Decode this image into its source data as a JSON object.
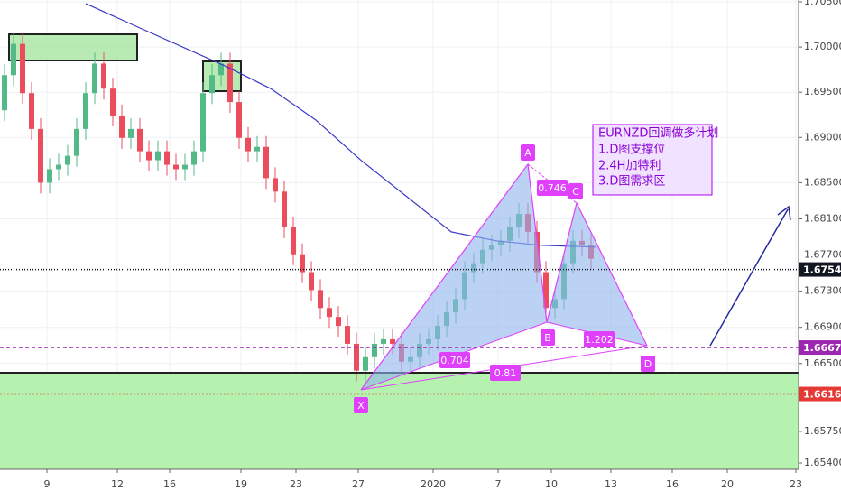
{
  "chart_data": {
    "type": "candlestick",
    "x": [
      0,
      1,
      2,
      3,
      4,
      5,
      6,
      7,
      8,
      9,
      10,
      11,
      12,
      13,
      14,
      15,
      16,
      17,
      18,
      19,
      20,
      21,
      22,
      23,
      24,
      25,
      26,
      27,
      28,
      29,
      30,
      31,
      32,
      33,
      34,
      35,
      36,
      37,
      38,
      39,
      40,
      41,
      42,
      43,
      44,
      45,
      46,
      47,
      48,
      49,
      50,
      51,
      52,
      53,
      54,
      55,
      56,
      57,
      58,
      59,
      60,
      61,
      62,
      63,
      64,
      65
    ],
    "open": [
      1.693,
      1.69689,
      1.70035,
      1.6949,
      1.69094,
      1.685,
      1.68649,
      1.68698,
      1.68797,
      1.69094,
      1.6949,
      1.69817,
      1.6954,
      1.69243,
      1.68995,
      1.69094,
      1.68847,
      1.68748,
      1.68847,
      1.68698,
      1.68649,
      1.68698,
      1.68847,
      1.6949,
      1.69689,
      1.69817,
      1.69391,
      1.68995,
      1.68847,
      1.68896,
      1.6855,
      1.68401,
      1.68005,
      1.67708,
      1.6751,
      1.67312,
      1.67114,
      1.67015,
      1.66916,
      1.66718,
      1.66421,
      1.6657,
      1.66718,
      1.66768,
      1.66718,
      1.6652,
      1.6657,
      1.66718,
      1.66768,
      1.66916,
      1.67065,
      1.67213,
      1.6751,
      1.67609,
      1.67758,
      1.67807,
      1.67857,
      1.68005,
      1.68154,
      1.67956,
      1.6751,
      1.67114,
      1.67213,
      1.67609,
      1.67857,
      1.67807
    ],
    "high": [
      1.69809,
      1.70155,
      1.70155,
      1.6961,
      1.69214,
      1.68769,
      1.68818,
      1.68917,
      1.69214,
      1.6961,
      1.69937,
      1.69937,
      1.6966,
      1.69363,
      1.69214,
      1.69214,
      1.68967,
      1.68967,
      1.68967,
      1.68818,
      1.68818,
      1.68967,
      1.6961,
      1.69809,
      1.69937,
      1.69937,
      1.69511,
      1.69115,
      1.69016,
      1.69016,
      1.6867,
      1.68521,
      1.68125,
      1.67828,
      1.6763,
      1.67432,
      1.67234,
      1.67135,
      1.67036,
      1.66838,
      1.6669,
      1.66838,
      1.66888,
      1.66888,
      1.66838,
      1.6669,
      1.66838,
      1.66888,
      1.67036,
      1.67185,
      1.67333,
      1.6763,
      1.67729,
      1.67878,
      1.67927,
      1.67977,
      1.68125,
      1.68274,
      1.68274,
      1.68076,
      1.6763,
      1.67333,
      1.67729,
      1.67977,
      1.67977,
      1.67927
    ],
    "low": [
      1.6918,
      1.69569,
      1.6937,
      1.68974,
      1.6838,
      1.6838,
      1.68529,
      1.68578,
      1.68677,
      1.68974,
      1.6937,
      1.6942,
      1.69123,
      1.68875,
      1.68875,
      1.68727,
      1.68628,
      1.68628,
      1.68578,
      1.68529,
      1.68529,
      1.68578,
      1.68727,
      1.6937,
      1.69569,
      1.69271,
      1.68875,
      1.68727,
      1.68727,
      1.6843,
      1.68281,
      1.67885,
      1.67588,
      1.6739,
      1.67192,
      1.66994,
      1.66895,
      1.66796,
      1.66598,
      1.66301,
      1.66301,
      1.6645,
      1.66598,
      1.66598,
      1.664,
      1.664,
      1.6645,
      1.66598,
      1.66648,
      1.66796,
      1.66945,
      1.67093,
      1.6739,
      1.67489,
      1.67638,
      1.67687,
      1.67737,
      1.67885,
      1.67836,
      1.6739,
      1.66994,
      1.66994,
      1.67093,
      1.67489,
      1.67687,
      1.67539
    ],
    "close": [
      1.69689,
      1.70035,
      1.6949,
      1.69094,
      1.685,
      1.68649,
      1.68698,
      1.68797,
      1.69094,
      1.6949,
      1.69817,
      1.6954,
      1.69243,
      1.68995,
      1.69094,
      1.68847,
      1.68748,
      1.68847,
      1.68698,
      1.68649,
      1.68698,
      1.68847,
      1.6949,
      1.69689,
      1.69817,
      1.69391,
      1.68995,
      1.68847,
      1.68896,
      1.6855,
      1.68401,
      1.68005,
      1.67708,
      1.6751,
      1.67312,
      1.67114,
      1.67015,
      1.66916,
      1.66718,
      1.66421,
      1.6657,
      1.66718,
      1.66768,
      1.66718,
      1.6652,
      1.6657,
      1.66718,
      1.66768,
      1.66916,
      1.67065,
      1.67213,
      1.6751,
      1.67609,
      1.67758,
      1.67807,
      1.67857,
      1.68005,
      1.68154,
      1.67956,
      1.6751,
      1.67114,
      1.67213,
      1.67609,
      1.67857,
      1.67807,
      1.67659
    ],
    "up_color": "#53b987",
    "down_color": "#eb4d5c",
    "ylim": [
      1.6533,
      1.7052
    ],
    "yticks": [
      {
        "value": 1.705,
        "label": "1.70500"
      },
      {
        "value": 1.7,
        "label": "1.70000"
      },
      {
        "value": 1.695,
        "label": "1.69500"
      },
      {
        "value": 1.69,
        "label": "1.69000"
      },
      {
        "value": 1.685,
        "label": "1.68500"
      },
      {
        "value": 1.681,
        "label": "1.68100"
      },
      {
        "value": 1.677,
        "label": "1.67700"
      },
      {
        "value": 1.673,
        "label": "1.67300"
      },
      {
        "value": 1.669,
        "label": "1.66900"
      },
      {
        "value": 1.665,
        "label": "1.66500"
      },
      {
        "value": 1.6575,
        "label": "1.65750"
      },
      {
        "value": 1.654,
        "label": "1.65400"
      }
    ],
    "xlim": [
      -0.5,
      88
    ],
    "xticks": [
      {
        "value": 4.7,
        "label": "9"
      },
      {
        "value": 12.5,
        "label": "12"
      },
      {
        "value": 18.3,
        "label": "16"
      },
      {
        "value": 26.2,
        "label": "19"
      },
      {
        "value": 32.3,
        "label": "23"
      },
      {
        "value": 39.2,
        "label": "27"
      },
      {
        "value": 47.5,
        "label": "2020"
      },
      {
        "value": 54.7,
        "label": "7"
      },
      {
        "value": 60.6,
        "label": "10"
      },
      {
        "value": 67.2,
        "label": "13"
      },
      {
        "value": 74,
        "label": "16"
      },
      {
        "value": 80.1,
        "label": "20"
      },
      {
        "value": 87.7,
        "label": "23"
      }
    ],
    "grid": true,
    "overlays": [
      {
        "color": "#3a3ac8",
        "x": [
          9,
          14.5,
          24.5,
          29.5,
          34.5,
          39.5,
          44.5,
          49.5,
          54.5,
          59.5,
          65.5
        ],
        "values": [
          1.70481,
          1.70233,
          1.69788,
          1.6954,
          1.69193,
          1.68748,
          1.68352,
          1.67956,
          1.67857,
          1.67807,
          1.67788
        ]
      }
    ],
    "price_lines": [
      {
        "value": 1.6754,
        "label": "1.67540",
        "color": "#131722",
        "dash": "1 2"
      },
      {
        "value": 1.66677,
        "label": "1.66677",
        "color": "#9c27b0",
        "dash": "4 3"
      },
      {
        "value": 1.66163,
        "label": "1.66163",
        "color": "#e53935",
        "dash": "2 2"
      }
    ],
    "pattern_points": [
      "X",
      "A",
      "B",
      "C",
      "D"
    ],
    "ratios": [
      "0.746",
      "0.704",
      "1.202",
      "0.81"
    ],
    "note": [
      "EURNZD回调做多计划",
      "1.D图支撑位",
      "2.4H加特利",
      "3.D图需求区"
    ]
  }
}
